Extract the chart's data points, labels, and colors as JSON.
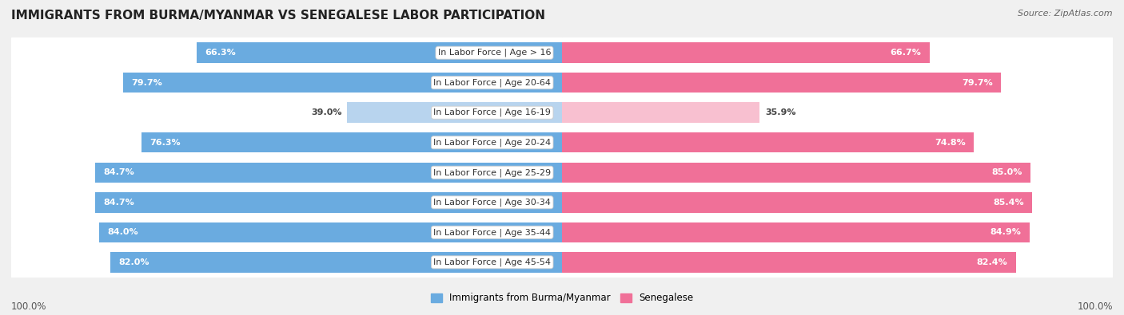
{
  "title": "IMMIGRANTS FROM BURMA/MYANMAR VS SENEGALESE LABOR PARTICIPATION",
  "source": "Source: ZipAtlas.com",
  "categories": [
    "In Labor Force | Age > 16",
    "In Labor Force | Age 20-64",
    "In Labor Force | Age 16-19",
    "In Labor Force | Age 20-24",
    "In Labor Force | Age 25-29",
    "In Labor Force | Age 30-34",
    "In Labor Force | Age 35-44",
    "In Labor Force | Age 45-54"
  ],
  "burma_values": [
    66.3,
    79.7,
    39.0,
    76.3,
    84.7,
    84.7,
    84.0,
    82.0
  ],
  "senegal_values": [
    66.7,
    79.7,
    35.9,
    74.8,
    85.0,
    85.4,
    84.9,
    82.4
  ],
  "burma_color": "#6aabe0",
  "burma_color_light": "#b8d4ee",
  "senegal_color": "#f07098",
  "senegal_color_light": "#f8c0d0",
  "bar_height": 0.68,
  "background_color": "#f0f0f0",
  "row_light": "#ffffff",
  "row_dark": "#e8e8e8",
  "label_fontsize": 8.0,
  "value_fontsize": 8.0,
  "title_fontsize": 11,
  "source_fontsize": 8,
  "footer_fontsize": 8.5,
  "footer_x_left": "100.0%",
  "footer_x_right": "100.0%",
  "legend_label_burma": "Immigrants from Burma/Myanmar",
  "legend_label_senegal": "Senegalese"
}
